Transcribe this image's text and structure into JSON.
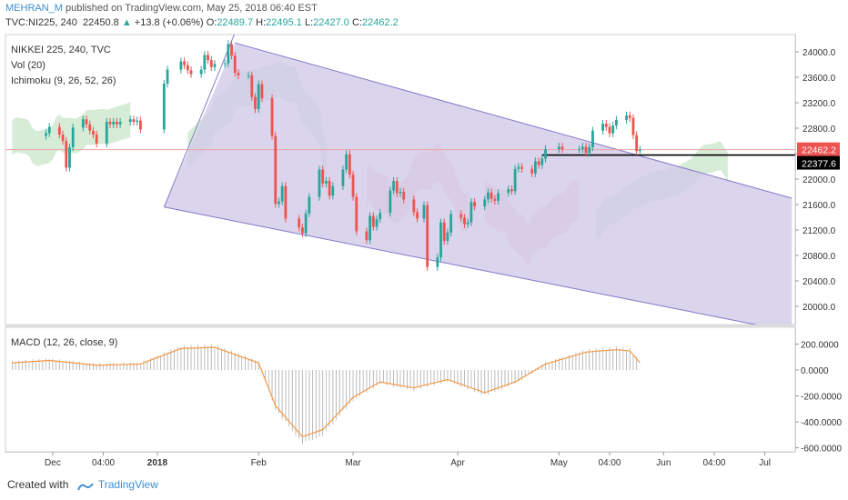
{
  "header": {
    "author": "MEHRAN_M",
    "published": "published on TradingView.com, May 25, 2018 06:40 EST",
    "symbol": "TVC:NI225, 240",
    "last": "22450.8",
    "change_arrow": "▲",
    "change": "+13.8 (+0.06%)",
    "o_label": "O:",
    "o_value": "22489.7",
    "h_label": "H:",
    "h_value": "22495.1",
    "l_label": "L:",
    "l_value": "22427.0",
    "c_label": "C:",
    "c_value": "22462.2"
  },
  "legend": {
    "title": "NIKKEI 225, 240, TVC",
    "vol": "Vol (20)",
    "ichimoku": "Ichimoku (9, 26, 52, 26)",
    "macd": "MACD (12, 26, close, 9)"
  },
  "footer": {
    "created_with": "Created with",
    "brand": "TradingView"
  },
  "colors": {
    "up": "#26a69a",
    "down": "#ef5350",
    "channel_fill": "#d2cbe8",
    "channel_line": "#8479c8",
    "cloud_green": "#c8e6c9",
    "cloud_red": "#f8c9cf",
    "macd_line": "#f59a45",
    "hist": "#b8b8b8",
    "price_line": "#f0a0a0",
    "level_line": "#000000",
    "author": "#3d8fd1"
  },
  "chart_data": [
    {
      "type": "candlestick",
      "title": "NIKKEI 225, 240, TVC",
      "ylim": [
        19700,
        24300
      ],
      "y_ticks": [
        20000,
        20400,
        20800,
        21200,
        21600,
        22000,
        22400,
        22800,
        23200,
        23600,
        24000
      ],
      "y_tick_labels": [
        "20000.0",
        "20400.0",
        "20800.0",
        "21200.0",
        "21600.0",
        "22000.0",
        "22400.0",
        "22800.0",
        "23200.0",
        "23600.0",
        "24000.0"
      ],
      "x_tick_labels": [
        "Dec",
        "04:00",
        "2018",
        "Feb",
        "Mar",
        "Apr",
        "May",
        "04:00",
        "Jun",
        "04:00",
        "Jul"
      ],
      "price_marker": "22462.2",
      "level_marker": "22377.6",
      "close_path": [
        {
          "date": "2017-11-30",
          "close": 22720
        },
        {
          "date": "2017-12-01",
          "close": 22820
        },
        {
          "date": "2017-12-04",
          "close": 22700
        },
        {
          "date": "2017-12-05",
          "close": 22600
        },
        {
          "date": "2017-12-06",
          "close": 22180
        },
        {
          "date": "2017-12-07",
          "close": 22500
        },
        {
          "date": "2017-12-08",
          "close": 22810
        },
        {
          "date": "2017-12-11",
          "close": 22940
        },
        {
          "date": "2017-12-12",
          "close": 22860
        },
        {
          "date": "2017-12-13",
          "close": 22760
        },
        {
          "date": "2017-12-14",
          "close": 22700
        },
        {
          "date": "2017-12-15",
          "close": 22560
        },
        {
          "date": "2017-12-18",
          "close": 22900
        },
        {
          "date": "2017-12-19",
          "close": 22860
        },
        {
          "date": "2017-12-20",
          "close": 22900
        },
        {
          "date": "2017-12-21",
          "close": 22860
        },
        {
          "date": "2017-12-22",
          "close": 22900
        },
        {
          "date": "2017-12-25",
          "close": 22940
        },
        {
          "date": "2017-12-26",
          "close": 22900
        },
        {
          "date": "2017-12-27",
          "close": 22920
        },
        {
          "date": "2017-12-28",
          "close": 22780
        },
        {
          "date": "2018-01-04",
          "close": 23500
        },
        {
          "date": "2018-01-05",
          "close": 23720
        },
        {
          "date": "2018-01-09",
          "close": 23850
        },
        {
          "date": "2018-01-10",
          "close": 23790
        },
        {
          "date": "2018-01-11",
          "close": 23710
        },
        {
          "date": "2018-01-12",
          "close": 23650
        },
        {
          "date": "2018-01-15",
          "close": 23720
        },
        {
          "date": "2018-01-16",
          "close": 23950
        },
        {
          "date": "2018-01-17",
          "close": 23870
        },
        {
          "date": "2018-01-18",
          "close": 23760
        },
        {
          "date": "2018-01-19",
          "close": 23810
        },
        {
          "date": "2018-01-22",
          "close": 23820
        },
        {
          "date": "2018-01-23",
          "close": 24120
        },
        {
          "date": "2018-01-24",
          "close": 23940
        },
        {
          "date": "2018-01-25",
          "close": 23670
        },
        {
          "date": "2018-01-26",
          "close": 23630
        },
        {
          "date": "2018-01-29",
          "close": 23630
        },
        {
          "date": "2018-01-30",
          "close": 23290
        },
        {
          "date": "2018-01-31",
          "close": 23100
        },
        {
          "date": "2018-02-01",
          "close": 23490
        },
        {
          "date": "2018-02-02",
          "close": 23270
        },
        {
          "date": "2018-02-05",
          "close": 22680
        },
        {
          "date": "2018-02-06",
          "close": 21610
        },
        {
          "date": "2018-02-07",
          "close": 21650
        },
        {
          "date": "2018-02-08",
          "close": 21890
        },
        {
          "date": "2018-02-09",
          "close": 21380
        },
        {
          "date": "2018-02-13",
          "close": 21240
        },
        {
          "date": "2018-02-14",
          "close": 21150
        },
        {
          "date": "2018-02-15",
          "close": 21460
        },
        {
          "date": "2018-02-16",
          "close": 21720
        },
        {
          "date": "2018-02-19",
          "close": 22150
        },
        {
          "date": "2018-02-20",
          "close": 21930
        },
        {
          "date": "2018-02-21",
          "close": 21970
        },
        {
          "date": "2018-02-22",
          "close": 21740
        },
        {
          "date": "2018-02-23",
          "close": 21890
        },
        {
          "date": "2018-02-26",
          "close": 22150
        },
        {
          "date": "2018-02-27",
          "close": 22390
        },
        {
          "date": "2018-02-28",
          "close": 22070
        },
        {
          "date": "2018-03-01",
          "close": 21720
        },
        {
          "date": "2018-03-02",
          "close": 21180
        },
        {
          "date": "2018-03-05",
          "close": 21040
        },
        {
          "date": "2018-03-06",
          "close": 21420
        },
        {
          "date": "2018-03-07",
          "close": 21250
        },
        {
          "date": "2018-03-08",
          "close": 21370
        },
        {
          "date": "2018-03-09",
          "close": 21470
        },
        {
          "date": "2018-03-12",
          "close": 21820
        },
        {
          "date": "2018-03-13",
          "close": 21970
        },
        {
          "date": "2018-03-14",
          "close": 21780
        },
        {
          "date": "2018-03-15",
          "close": 21800
        },
        {
          "date": "2018-03-16",
          "close": 21680
        },
        {
          "date": "2018-03-19",
          "close": 21480
        },
        {
          "date": "2018-03-20",
          "close": 21380
        },
        {
          "date": "2018-03-22",
          "close": 21590
        },
        {
          "date": "2018-03-23",
          "close": 20620
        },
        {
          "date": "2018-03-26",
          "close": 20770
        },
        {
          "date": "2018-03-27",
          "close": 21320
        },
        {
          "date": "2018-03-28",
          "close": 21030
        },
        {
          "date": "2018-03-29",
          "close": 21160
        },
        {
          "date": "2018-03-30",
          "close": 21450
        },
        {
          "date": "2018-04-02",
          "close": 21390
        },
        {
          "date": "2018-04-03",
          "close": 21290
        },
        {
          "date": "2018-04-04",
          "close": 21320
        },
        {
          "date": "2018-04-05",
          "close": 21640
        },
        {
          "date": "2018-04-06",
          "close": 21570
        },
        {
          "date": "2018-04-09",
          "close": 21680
        },
        {
          "date": "2018-04-10",
          "close": 21790
        },
        {
          "date": "2018-04-11",
          "close": 21690
        },
        {
          "date": "2018-04-12",
          "close": 21660
        },
        {
          "date": "2018-04-13",
          "close": 21780
        },
        {
          "date": "2018-04-16",
          "close": 21840
        },
        {
          "date": "2018-04-17",
          "close": 21810
        },
        {
          "date": "2018-04-18",
          "close": 22160
        },
        {
          "date": "2018-04-19",
          "close": 22190
        },
        {
          "date": "2018-04-20",
          "close": 22160
        },
        {
          "date": "2018-04-23",
          "close": 22090
        },
        {
          "date": "2018-04-24",
          "close": 22280
        },
        {
          "date": "2018-04-25",
          "close": 22220
        },
        {
          "date": "2018-04-26",
          "close": 22320
        },
        {
          "date": "2018-04-27",
          "close": 22470
        },
        {
          "date": "2018-05-01",
          "close": 22510
        },
        {
          "date": "2018-05-02",
          "close": 22470
        },
        {
          "date": "2018-05-07",
          "close": 22470
        },
        {
          "date": "2018-05-08",
          "close": 22510
        },
        {
          "date": "2018-05-09",
          "close": 22410
        },
        {
          "date": "2018-05-10",
          "close": 22500
        },
        {
          "date": "2018-05-11",
          "close": 22760
        },
        {
          "date": "2018-05-14",
          "close": 22870
        },
        {
          "date": "2018-05-15",
          "close": 22820
        },
        {
          "date": "2018-05-16",
          "close": 22720
        },
        {
          "date": "2018-05-17",
          "close": 22840
        },
        {
          "date": "2018-05-18",
          "close": 22930
        },
        {
          "date": "2018-05-21",
          "close": 23000
        },
        {
          "date": "2018-05-22",
          "close": 22960
        },
        {
          "date": "2018-05-23",
          "close": 22690
        },
        {
          "date": "2018-05-24",
          "close": 22440
        },
        {
          "date": "2018-05-25",
          "close": 22462
        }
      ],
      "channel": {
        "upper": [
          {
            "date": "2018-01-25",
            "price": 24140
          },
          {
            "date": "2018-07-09",
            "price": 21700
          }
        ],
        "lower": [
          {
            "date": "2018-01-04",
            "price": 21560
          },
          {
            "date": "2018-07-09",
            "price": 19600
          }
        ]
      }
    },
    {
      "type": "line",
      "title": "MACD (12, 26, close, 9)",
      "ylim": [
        -650,
        280
      ],
      "y_ticks": [
        200,
        0,
        -200,
        -400,
        -600
      ],
      "y_tick_labels": [
        "200.0000",
        "0.0000",
        "-200.0000",
        "-400.0000",
        "-600.0000"
      ],
      "series": [
        {
          "name": "MACD",
          "values": [
            {
              "date": "2017-11-20",
              "value": 60
            },
            {
              "date": "2017-12-01",
              "value": 80
            },
            {
              "date": "2017-12-15",
              "value": 40
            },
            {
              "date": "2017-12-28",
              "value": 50
            },
            {
              "date": "2018-01-09",
              "value": 180
            },
            {
              "date": "2018-01-19",
              "value": 190
            },
            {
              "date": "2018-02-01",
              "value": 60
            },
            {
              "date": "2018-02-06",
              "value": -300
            },
            {
              "date": "2018-02-14",
              "value": -560
            },
            {
              "date": "2018-02-20",
              "value": -500
            },
            {
              "date": "2018-03-01",
              "value": -230
            },
            {
              "date": "2018-03-09",
              "value": -100
            },
            {
              "date": "2018-03-19",
              "value": -150
            },
            {
              "date": "2018-03-29",
              "value": -80
            },
            {
              "date": "2018-04-09",
              "value": -190
            },
            {
              "date": "2018-04-18",
              "value": -100
            },
            {
              "date": "2018-04-27",
              "value": 50
            },
            {
              "date": "2018-05-09",
              "value": 150
            },
            {
              "date": "2018-05-18",
              "value": 170
            },
            {
              "date": "2018-05-22",
              "value": 160
            },
            {
              "date": "2018-05-25",
              "value": 60
            }
          ]
        }
      ]
    }
  ]
}
